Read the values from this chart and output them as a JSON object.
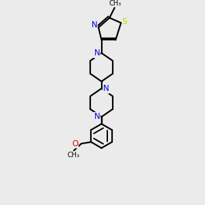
{
  "bg_color": "#ebebeb",
  "bond_color": "#000000",
  "N_color": "#0000ee",
  "S_color": "#cccc00",
  "O_color": "#ee0000",
  "line_width": 1.6,
  "font_size": 8.5,
  "fig_w": 3.0,
  "fig_h": 3.0,
  "dpi": 100,
  "xlim": [
    0,
    10
  ],
  "ylim": [
    0,
    10
  ]
}
